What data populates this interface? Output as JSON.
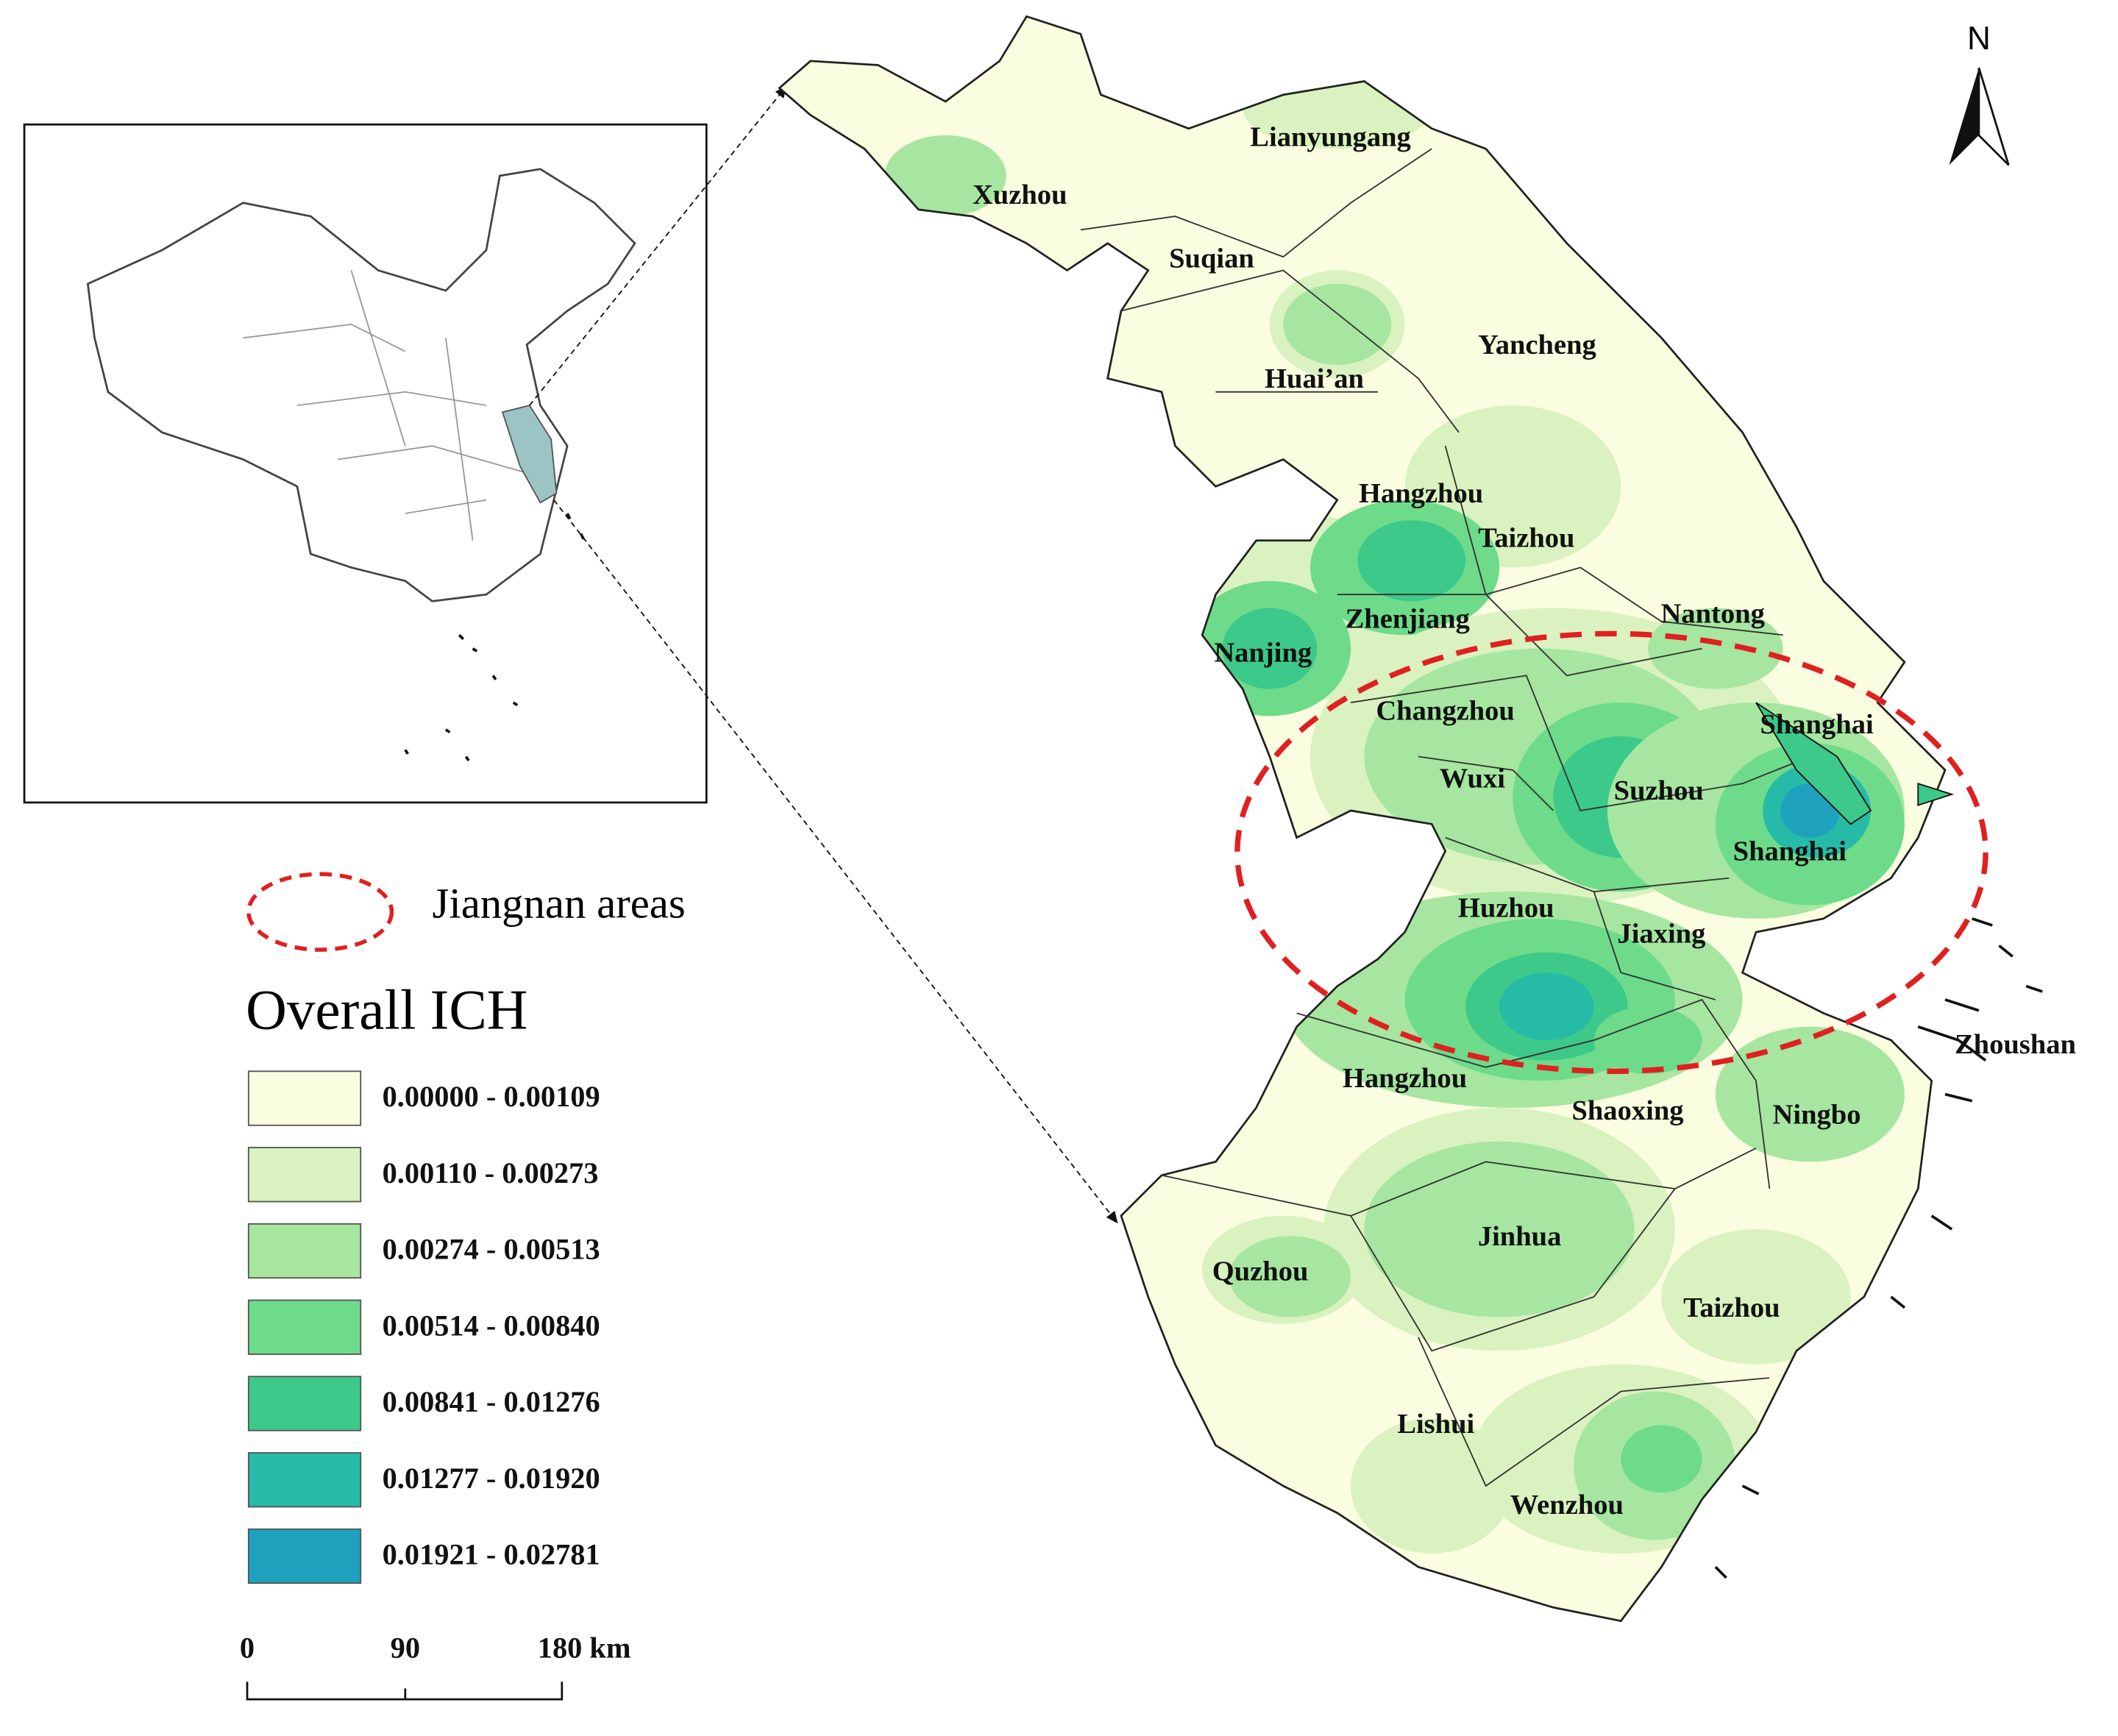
{
  "cities": [
    "Lianyungang",
    "Xuzhou",
    "Suqian",
    "Yancheng",
    "Huai’an",
    "Hangzhou",
    "Taizhou",
    "Zhenjiang",
    "Nantong",
    "Nanjing",
    "Changzhou",
    "Shanghai",
    "Wuxi",
    "Suzhou",
    "Shanghai",
    "Huzhou",
    "Jiaxing",
    "Zhoushan",
    "Hangzhou",
    "Shaoxing",
    "Ningbo",
    "Jinhua",
    "Quzhou",
    "Taizhou",
    "Lishui",
    "Wenzhou"
  ],
  "legend": {
    "region_label": "Jiangnan areas",
    "title": "Overall ICH",
    "classes": [
      {
        "label": "0.00000 - 0.00109",
        "color": "#fbfde0"
      },
      {
        "label": "0.00110 - 0.00273",
        "color": "#d9f2bf"
      },
      {
        "label": "0.00274 - 0.00513",
        "color": "#a6e6a0"
      },
      {
        "label": "0.00514 - 0.00840",
        "color": "#6ddb8a"
      },
      {
        "label": "0.00841 - 0.01276",
        "color": "#3cc98a"
      },
      {
        "label": "0.01277 - 0.01920",
        "color": "#26bba6"
      },
      {
        "label": "0.01921 - 0.02781",
        "color": "#1ea2be"
      }
    ]
  },
  "north_arrow": "N",
  "scale_bar": {
    "labels": [
      "0",
      "90",
      "180 km"
    ]
  }
}
